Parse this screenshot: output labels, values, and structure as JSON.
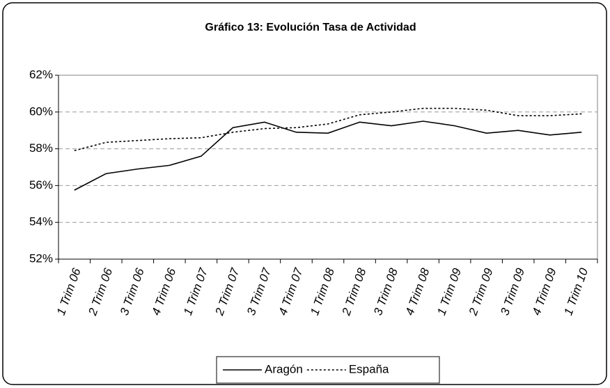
{
  "chart_data": {
    "type": "line",
    "title": "Gráfico 13: Evolución Tasa de Actividad",
    "categories": [
      "1 Trim 06",
      "2 Trim 06",
      "3 Trim 06",
      "4 Trim 06",
      "1 Trim 07",
      "2 Trim 07",
      "3 Trim 07",
      "4 Trim 07",
      "1 Trim 08",
      "2 Trim 08",
      "3 Trim 08",
      "4 Trim 08",
      "1 Trim 09",
      "2 Trim 09",
      "3 Trim 09",
      "4 Trim 09",
      "1 Trim 10"
    ],
    "series": [
      {
        "name": "Aragón",
        "color": "#000000",
        "dash": "solid",
        "values": [
          55.75,
          56.65,
          56.9,
          57.1,
          57.6,
          59.15,
          59.45,
          58.9,
          58.85,
          59.45,
          59.25,
          59.5,
          59.25,
          58.85,
          59.0,
          58.75,
          58.9
        ]
      },
      {
        "name": "España",
        "color": "#000000",
        "dash": "dotted",
        "values": [
          57.9,
          58.35,
          58.45,
          58.55,
          58.6,
          58.9,
          59.1,
          59.15,
          59.35,
          59.85,
          60.0,
          60.2,
          60.2,
          60.1,
          59.8,
          59.8,
          59.9
        ]
      }
    ],
    "ylim": [
      52,
      62
    ],
    "yticks": [
      {
        "value": 52,
        "label": "52%"
      },
      {
        "value": 54,
        "label": "54%"
      },
      {
        "value": 56,
        "label": "56%"
      },
      {
        "value": 58,
        "label": "58%"
      },
      {
        "value": 60,
        "label": "60%"
      },
      {
        "value": 62,
        "label": "62%"
      }
    ],
    "grid": true,
    "legend": "bottom"
  }
}
